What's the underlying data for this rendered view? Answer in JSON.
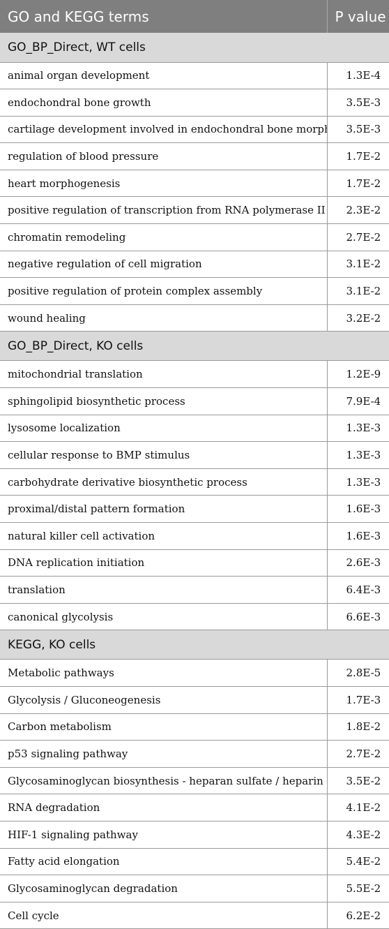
{
  "header": {
    "term_label": "GO and KEGG terms",
    "p_label": "P value"
  },
  "sections": [
    {
      "title": "GO_BP_Direct, WT cells",
      "rows": [
        {
          "term": "animal organ development",
          "p": "1.3E-4"
        },
        {
          "term": "endochondral bone growth",
          "p": "3.5E-3"
        },
        {
          "term": "cartilage development involved in endochondral bone morphogenesis",
          "p": "3.5E-3"
        },
        {
          "term": "regulation of blood pressure",
          "p": "1.7E-2"
        },
        {
          "term": "heart morphogenesis",
          "p": "1.7E-2"
        },
        {
          "term": "positive regulation of transcription from RNA polymerase II promoter",
          "p": "2.3E-2"
        },
        {
          "term": "chromatin remodeling",
          "p": "2.7E-2"
        },
        {
          "term": "negative regulation of cell migration",
          "p": "3.1E-2"
        },
        {
          "term": "positive regulation of protein complex assembly",
          "p": "3.1E-2"
        },
        {
          "term": "wound healing",
          "p": "3.2E-2"
        }
      ]
    },
    {
      "title": "GO_BP_Direct, KO cells",
      "rows": [
        {
          "term": "mitochondrial translation",
          "p": "1.2E-9"
        },
        {
          "term": "sphingolipid biosynthetic process",
          "p": "7.9E-4"
        },
        {
          "term": "lysosome localization",
          "p": "1.3E-3"
        },
        {
          "term": "cellular response to BMP stimulus",
          "p": "1.3E-3"
        },
        {
          "term": "carbohydrate derivative biosynthetic process",
          "p": "1.3E-3"
        },
        {
          "term": "proximal/distal pattern formation",
          "p": "1.6E-3"
        },
        {
          "term": "natural killer cell activation",
          "p": "1.6E-3"
        },
        {
          "term": "DNA replication initiation",
          "p": "2.6E-3"
        },
        {
          "term": "translation",
          "p": "6.4E-3"
        },
        {
          "term": "canonical glycolysis",
          "p": "6.6E-3"
        }
      ]
    },
    {
      "title": "KEGG, KO cells",
      "rows": [
        {
          "term": "Metabolic pathways",
          "p": "2.8E-5"
        },
        {
          "term": "Glycolysis / Gluconeogenesis",
          "p": "1.7E-3"
        },
        {
          "term": "Carbon metabolism",
          "p": "1.8E-2"
        },
        {
          "term": "p53 signaling pathway",
          "p": "2.7E-2"
        },
        {
          "term": "Glycosaminoglycan biosynthesis - heparan sulfate / heparin",
          "p": "3.5E-2"
        },
        {
          "term": "RNA degradation",
          "p": "4.1E-2"
        },
        {
          "term": "HIF-1 signaling pathway",
          "p": "4.3E-2"
        },
        {
          "term": "Fatty acid elongation",
          "p": "5.4E-2"
        },
        {
          "term": "Glycosaminoglycan degradation",
          "p": "5.5E-2"
        },
        {
          "term": "Cell cycle",
          "p": "6.2E-2"
        }
      ]
    }
  ]
}
